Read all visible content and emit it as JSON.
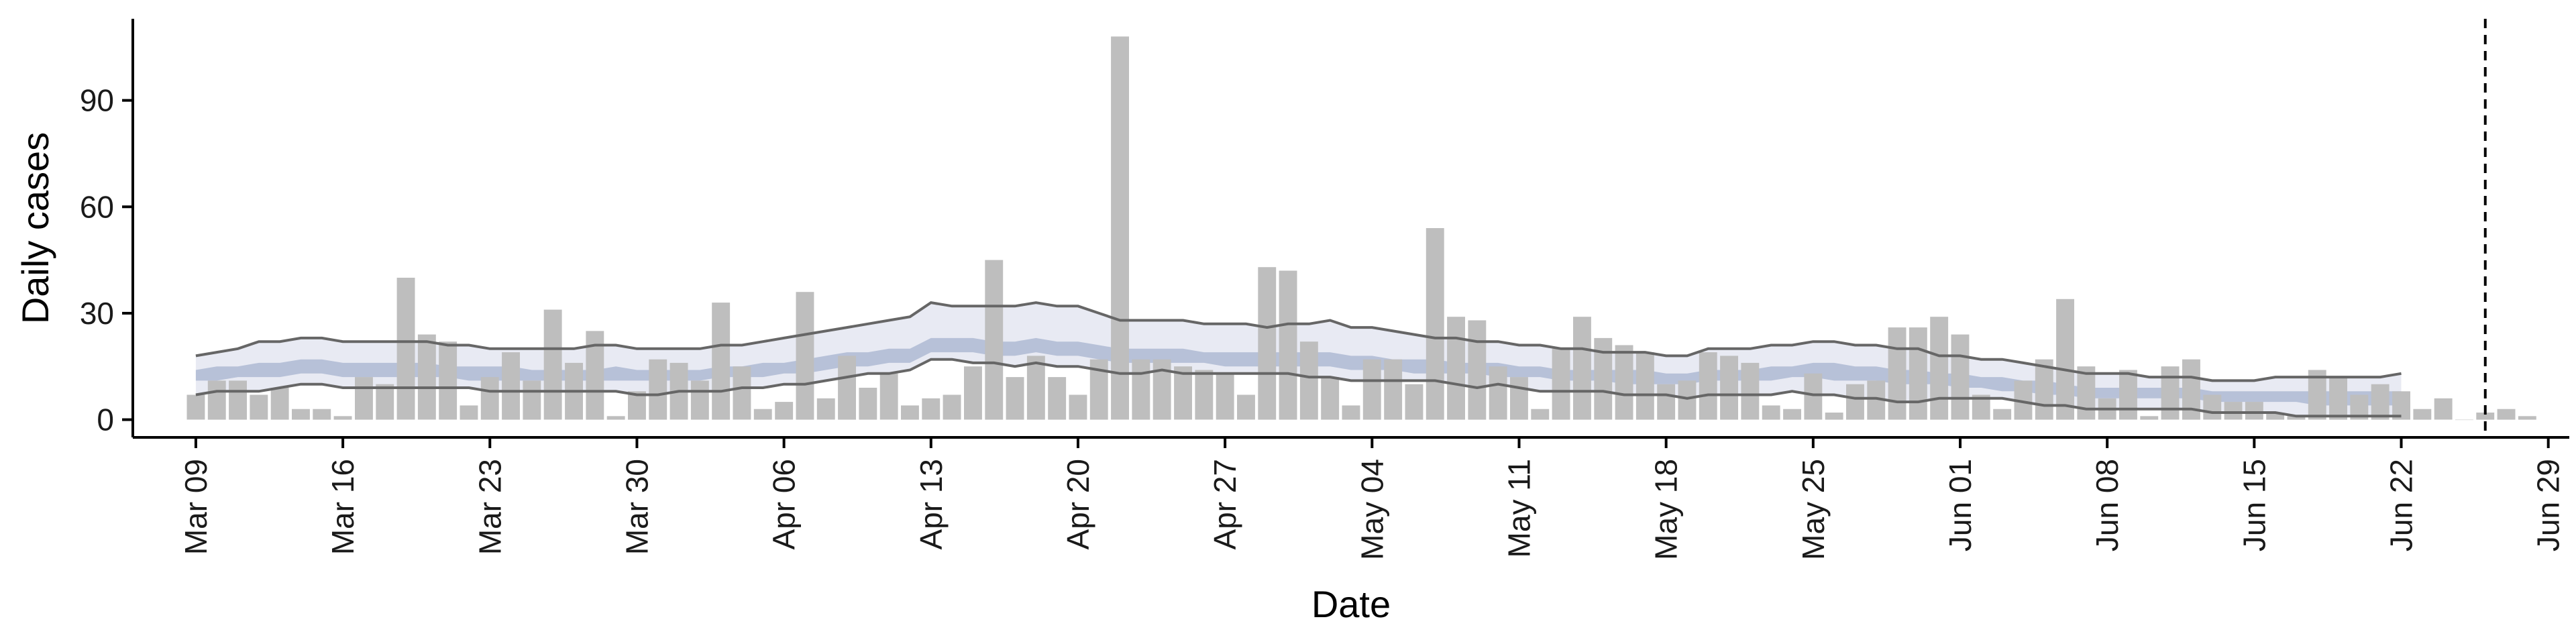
{
  "chart_data": {
    "type": "bar",
    "xlabel": "Date",
    "ylabel": "Daily cases",
    "ylim": [
      -5,
      113
    ],
    "xlim": [
      "2020-03-06",
      "2020-06-30"
    ],
    "y_ticks": [
      0,
      30,
      60,
      90
    ],
    "x_ticks": [
      {
        "date": "2020-03-09",
        "label": "Mar 09"
      },
      {
        "date": "2020-03-16",
        "label": "Mar 16"
      },
      {
        "date": "2020-03-23",
        "label": "Mar 23"
      },
      {
        "date": "2020-03-30",
        "label": "Mar 30"
      },
      {
        "date": "2020-04-06",
        "label": "Apr 06"
      },
      {
        "date": "2020-04-13",
        "label": "Apr 13"
      },
      {
        "date": "2020-04-20",
        "label": "Apr 20"
      },
      {
        "date": "2020-04-27",
        "label": "Apr 27"
      },
      {
        "date": "2020-05-04",
        "label": "May 04"
      },
      {
        "date": "2020-05-11",
        "label": "May 11"
      },
      {
        "date": "2020-05-18",
        "label": "May 18"
      },
      {
        "date": "2020-05-25",
        "label": "May 25"
      },
      {
        "date": "2020-06-01",
        "label": "Jun 01"
      },
      {
        "date": "2020-06-08",
        "label": "Jun 08"
      },
      {
        "date": "2020-06-15",
        "label": "Jun 15"
      },
      {
        "date": "2020-06-22",
        "label": "Jun 22"
      },
      {
        "date": "2020-06-29",
        "label": "Jun 29"
      }
    ],
    "bars": {
      "start": "2020-03-09",
      "values": [
        7,
        11,
        11,
        7,
        9,
        3,
        3,
        1,
        12,
        10,
        40,
        24,
        22,
        4,
        12,
        19,
        11,
        31,
        16,
        25,
        1,
        8,
        17,
        16,
        11,
        33,
        15,
        3,
        5,
        36,
        6,
        18,
        9,
        13,
        4,
        6,
        7,
        15,
        45,
        12,
        18,
        12,
        7,
        17,
        108,
        17,
        17,
        15,
        14,
        13,
        7,
        43,
        42,
        22,
        12,
        4,
        17,
        17,
        10,
        54,
        29,
        28,
        15,
        12,
        3,
        20,
        29,
        23,
        21,
        19,
        10,
        11,
        19,
        18,
        16,
        4,
        3,
        13,
        2,
        10,
        11,
        26,
        26,
        29,
        24,
        7,
        3,
        11,
        17,
        34,
        15,
        6,
        14,
        1,
        15,
        17,
        7,
        5,
        5,
        2,
        1,
        14,
        12,
        7,
        10,
        8,
        3,
        6,
        0,
        2,
        3,
        1
      ],
      "color": "#bebebe"
    },
    "band_outer": {
      "start": "2020-03-09",
      "upper": [
        18,
        19,
        20,
        22,
        22,
        23,
        23,
        22,
        22,
        22,
        22,
        22,
        21,
        21,
        20,
        20,
        20,
        20,
        20,
        21,
        21,
        20,
        20,
        20,
        20,
        21,
        21,
        22,
        23,
        24,
        25,
        26,
        27,
        28,
        29,
        33,
        32,
        32,
        32,
        32,
        33,
        32,
        32,
        30,
        28,
        28,
        28,
        28,
        27,
        27,
        27,
        26,
        27,
        27,
        28,
        26,
        26,
        25,
        24,
        23,
        23,
        22,
        22,
        21,
        21,
        20,
        20,
        19,
        19,
        19,
        18,
        18,
        20,
        20,
        20,
        21,
        21,
        22,
        22,
        21,
        21,
        20,
        20,
        18,
        18,
        17,
        17,
        16,
        15,
        14,
        13,
        13,
        13,
        12,
        12,
        12,
        11,
        11,
        11,
        12,
        12,
        12,
        12,
        12,
        12,
        13
      ],
      "lower": [
        7,
        8,
        8,
        8,
        9,
        10,
        10,
        9,
        9,
        9,
        9,
        9,
        9,
        9,
        8,
        8,
        8,
        8,
        8,
        8,
        8,
        7,
        7,
        8,
        8,
        8,
        9,
        9,
        10,
        10,
        11,
        12,
        13,
        13,
        14,
        17,
        17,
        16,
        16,
        15,
        16,
        15,
        15,
        14,
        13,
        13,
        14,
        13,
        13,
        13,
        13,
        13,
        13,
        12,
        12,
        11,
        11,
        11,
        11,
        11,
        10,
        9,
        10,
        9,
        8,
        8,
        8,
        8,
        7,
        7,
        7,
        6,
        7,
        7,
        7,
        7,
        8,
        7,
        7,
        6,
        6,
        5,
        5,
        6,
        6,
        6,
        6,
        5,
        4,
        4,
        3,
        3,
        3,
        3,
        3,
        3,
        2,
        2,
        2,
        2,
        1,
        1,
        1,
        1,
        1,
        1
      ],
      "color": "#e8eaf3"
    },
    "band_inner": {
      "start": "2020-03-09",
      "upper": [
        14,
        15,
        15,
        16,
        16,
        17,
        17,
        16,
        16,
        16,
        16,
        16,
        15,
        15,
        15,
        15,
        14,
        14,
        14,
        14,
        15,
        14,
        14,
        14,
        14,
        15,
        15,
        16,
        16,
        17,
        18,
        19,
        19,
        20,
        20,
        23,
        23,
        23,
        22,
        22,
        23,
        22,
        22,
        21,
        20,
        20,
        20,
        20,
        19,
        19,
        19,
        19,
        19,
        19,
        19,
        18,
        18,
        17,
        17,
        17,
        16,
        16,
        16,
        15,
        15,
        14,
        14,
        14,
        14,
        14,
        13,
        13,
        14,
        14,
        14,
        15,
        15,
        16,
        16,
        15,
        15,
        14,
        14,
        13,
        13,
        12,
        12,
        11,
        11,
        10,
        9,
        9,
        9,
        9,
        9,
        9,
        8,
        8,
        8,
        8,
        8,
        8,
        8,
        8,
        8,
        8
      ],
      "lower": [
        11,
        11,
        12,
        12,
        12,
        13,
        13,
        12,
        12,
        12,
        12,
        12,
        12,
        11,
        11,
        11,
        11,
        11,
        11,
        11,
        11,
        11,
        11,
        11,
        11,
        12,
        12,
        12,
        13,
        13,
        14,
        15,
        15,
        16,
        16,
        19,
        19,
        19,
        18,
        18,
        19,
        18,
        18,
        17,
        16,
        16,
        16,
        16,
        16,
        15,
        15,
        15,
        15,
        15,
        15,
        14,
        14,
        14,
        13,
        13,
        13,
        13,
        12,
        12,
        12,
        11,
        11,
        11,
        10,
        10,
        10,
        10,
        11,
        11,
        11,
        11,
        12,
        12,
        11,
        11,
        11,
        10,
        10,
        10,
        9,
        9,
        8,
        8,
        7,
        7,
        6,
        6,
        6,
        6,
        6,
        6,
        5,
        5,
        5,
        5,
        5,
        4,
        4,
        4,
        4,
        4
      ],
      "color": "#b7c1d8"
    },
    "lines": {
      "start": "2020-03-09",
      "color": "#666666"
    },
    "vline": {
      "date": "2020-06-26",
      "style": "dashed",
      "color": "#000000"
    }
  }
}
